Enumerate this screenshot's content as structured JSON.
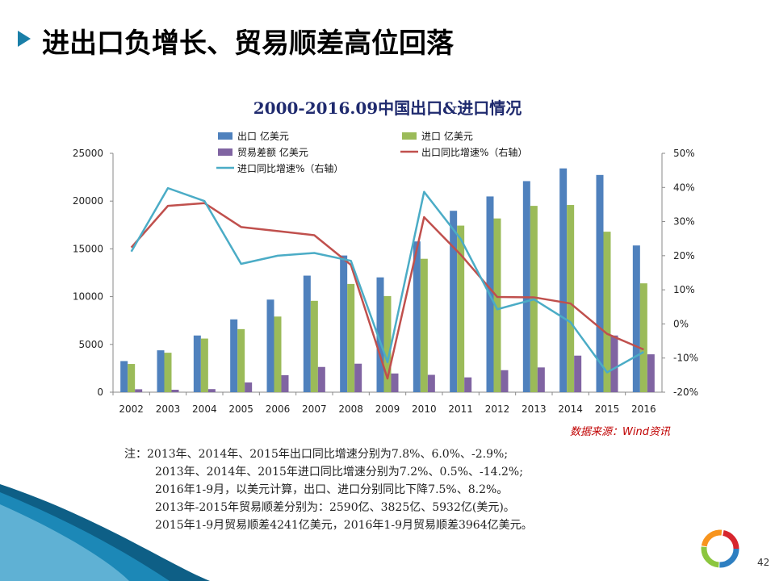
{
  "slide": {
    "title": "进出口负增长、贸易顺差高位回落",
    "page_number": "42",
    "source": "数据来源：Wind资讯",
    "notes": [
      "注：2013年、2014年、2015年出口同比增速分别为7.8%、6.0%、-2.9%;",
      "2013年、2014年、2015年进口同比增速分别为7.2%、0.5%、-14.2%;",
      "2016年1-9月，以美元计算，出口、进口分别同比下降7.5%、8.2%。",
      "2013年-2015年贸易顺差分别为：2590亿、3825亿、5932亿(美元)。",
      "2015年1-9月贸易顺差4241亿美元，2016年1-9月贸易顺差3964亿美元。"
    ]
  },
  "chart_data": {
    "type": "bar",
    "title": "2000-2016.09中国出口&进口情况",
    "categories": [
      "2002",
      "2003",
      "2004",
      "2005",
      "2006",
      "2007",
      "2008",
      "2009",
      "2010",
      "2011",
      "2012",
      "2013",
      "2014",
      "2015",
      "2016"
    ],
    "ylim": [
      0,
      25000
    ],
    "yticks": [
      "0",
      "5000",
      "10000",
      "15000",
      "20000",
      "25000"
    ],
    "y2lim": [
      -20,
      50
    ],
    "y2ticks": [
      "-20%",
      "-10%",
      "0%",
      "10%",
      "20%",
      "30%",
      "40%",
      "50%"
    ],
    "legend_position": "top",
    "series": [
      {
        "name": "出口 亿美元",
        "kind": "bar",
        "axis": "left",
        "color": "#4f81bd",
        "values": [
          3256,
          4382,
          5933,
          7620,
          9689,
          12200,
          14306,
          12016,
          15778,
          18984,
          20487,
          22090,
          23423,
          22735,
          15355
        ]
      },
      {
        "name": "进口 亿美元",
        "kind": "bar",
        "axis": "left",
        "color": "#9bbb59",
        "values": [
          2952,
          4128,
          5612,
          6600,
          7915,
          9561,
          11326,
          10059,
          13962,
          17435,
          18184,
          19500,
          19592,
          16796,
          11391
        ]
      },
      {
        "name": "贸易差额 亿美元",
        "kind": "bar",
        "axis": "left",
        "color": "#8064a2",
        "values": [
          304,
          255,
          321,
          1020,
          1775,
          2639,
          2981,
          1957,
          1815,
          1549,
          2303,
          2590,
          3825,
          5932,
          3964
        ]
      },
      {
        "name": "出口同比增速%（右轴）",
        "kind": "line",
        "axis": "right",
        "color": "#c0504d",
        "values": [
          22.4,
          34.6,
          35.4,
          28.4,
          27.2,
          26.0,
          17.3,
          -16.0,
          31.3,
          20.3,
          7.9,
          7.8,
          6.0,
          -2.9,
          -7.5
        ]
      },
      {
        "name": "进口同比增速%（右轴）",
        "kind": "line",
        "axis": "right",
        "color": "#4bacc6",
        "values": [
          21.2,
          39.8,
          36.0,
          17.6,
          20.0,
          20.8,
          18.5,
          -11.2,
          38.7,
          24.9,
          4.3,
          7.2,
          0.5,
          -14.2,
          -8.2
        ]
      }
    ]
  }
}
